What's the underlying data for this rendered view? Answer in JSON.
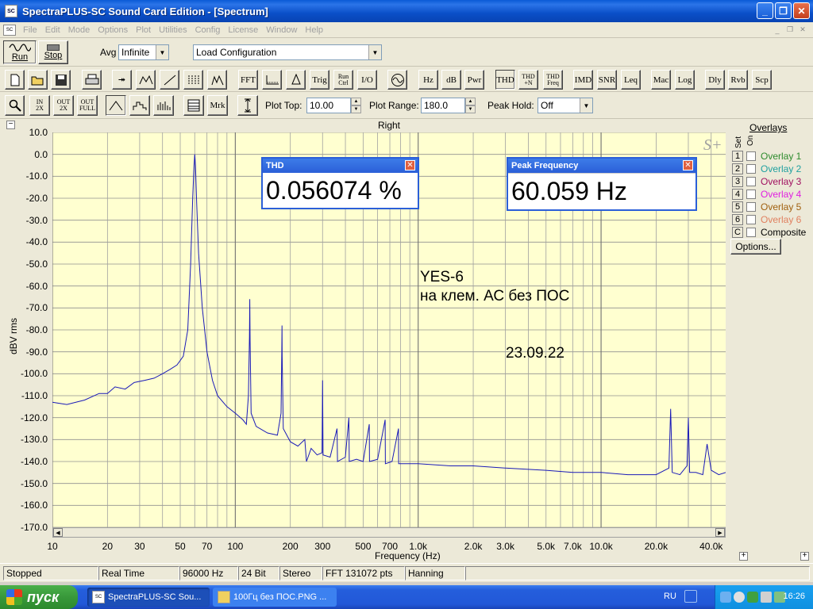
{
  "window": {
    "title": "SpectraPLUS-SC Sound Card Edition - [Spectrum]",
    "app_icon_text": "SC"
  },
  "menu": [
    "File",
    "Edit",
    "Mode",
    "Options",
    "Plot",
    "Utilities",
    "Config",
    "License",
    "Window",
    "Help"
  ],
  "toolbar1": {
    "run_label": "Run",
    "stop_label": "Stop",
    "avg_label": "Avg",
    "avg_value": "Infinite",
    "config_value": "Load Configuration"
  },
  "toolbar2": {
    "buttons": [
      "FFT",
      "Trig",
      "Run Ctrl",
      "I/O",
      "Hz",
      "dB",
      "Pwr",
      "THD",
      "THD +N",
      "THD Freq",
      "IMD",
      "SNR",
      "Leq",
      "Mac",
      "Log",
      "Dly",
      "Rvb",
      "Scp"
    ]
  },
  "toolbar3": {
    "mrk_label": "Mrk",
    "plot_top_label": "Plot Top:",
    "plot_top_value": "10.00",
    "plot_range_label": "Plot Range:",
    "plot_range_value": "180.0",
    "peak_hold_label": "Peak Hold:",
    "peak_hold_value": "Off"
  },
  "plot": {
    "title": "Right",
    "collapse_glyph": "−",
    "expand_glyph": "+",
    "logo_text": "S+"
  },
  "chart_data": {
    "type": "line",
    "title": "Right",
    "xlabel": "Frequency (Hz)",
    "ylabel": "dBV rms",
    "x_scale": "log",
    "xlim": [
      10,
      48000
    ],
    "ylim": [
      -170,
      10
    ],
    "grid": true,
    "background": "#ffffd0",
    "line_color": "#1a1ab8",
    "y_ticks": [
      "10.0",
      "0.0",
      "-10.0",
      "-20.0",
      "-30.0",
      "-40.0",
      "-50.0",
      "-60.0",
      "-70.0",
      "-80.0",
      "-90.0",
      "-100.0",
      "-110.0",
      "-120.0",
      "-130.0",
      "-140.0",
      "-150.0",
      "-160.0",
      "-170.0"
    ],
    "x_ticks": [
      {
        "v": 10,
        "label": "10"
      },
      {
        "v": 20,
        "label": "20"
      },
      {
        "v": 30,
        "label": "30"
      },
      {
        "v": 50,
        "label": "50"
      },
      {
        "v": 70,
        "label": "70"
      },
      {
        "v": 100,
        "label": "100"
      },
      {
        "v": 200,
        "label": "200"
      },
      {
        "v": 300,
        "label": "300"
      },
      {
        "v": 500,
        "label": "500"
      },
      {
        "v": 700,
        "label": "700"
      },
      {
        "v": 1000,
        "label": "1.0k"
      },
      {
        "v": 2000,
        "label": "2.0k"
      },
      {
        "v": 3000,
        "label": "3.0k"
      },
      {
        "v": 5000,
        "label": "5.0k"
      },
      {
        "v": 7000,
        "label": "7.0k"
      },
      {
        "v": 10000,
        "label": "10.0k"
      },
      {
        "v": 20000,
        "label": "20.0k"
      },
      {
        "v": 40000,
        "label": "40.0k"
      }
    ],
    "series": [
      {
        "values": [
          [
            10,
            -113
          ],
          [
            12,
            -114
          ],
          [
            15,
            -112
          ],
          [
            18,
            -109
          ],
          [
            20,
            -109
          ],
          [
            22,
            -106
          ],
          [
            25,
            -107
          ],
          [
            28,
            -104
          ],
          [
            32,
            -103
          ],
          [
            36,
            -102
          ],
          [
            40,
            -100
          ],
          [
            44,
            -98
          ],
          [
            48,
            -96
          ],
          [
            52,
            -92
          ],
          [
            55,
            -80
          ],
          [
            57,
            -50
          ],
          [
            58.5,
            -20
          ],
          [
            59.5,
            -5
          ],
          [
            60,
            0
          ],
          [
            60.6,
            -5
          ],
          [
            61.5,
            -22
          ],
          [
            63,
            -45
          ],
          [
            66,
            -70
          ],
          [
            70,
            -90
          ],
          [
            75,
            -103
          ],
          [
            80,
            -110
          ],
          [
            90,
            -115
          ],
          [
            100,
            -118
          ],
          [
            110,
            -121
          ],
          [
            115,
            -123
          ],
          [
            118,
            -110
          ],
          [
            119.5,
            -83
          ],
          [
            120,
            -66
          ],
          [
            120.5,
            -85
          ],
          [
            122,
            -118
          ],
          [
            130,
            -124
          ],
          [
            150,
            -127
          ],
          [
            170,
            -128
          ],
          [
            178,
            -118
          ],
          [
            179.5,
            -90
          ],
          [
            180,
            -78
          ],
          [
            180.5,
            -92
          ],
          [
            183,
            -125
          ],
          [
            200,
            -131
          ],
          [
            220,
            -133
          ],
          [
            240,
            -130
          ],
          [
            245,
            -140
          ],
          [
            260,
            -134
          ],
          [
            280,
            -137
          ],
          [
            298,
            -136
          ],
          [
            300,
            -103
          ],
          [
            302,
            -137
          ],
          [
            330,
            -138
          ],
          [
            360,
            -125
          ],
          [
            362,
            -140
          ],
          [
            400,
            -138
          ],
          [
            418,
            -120
          ],
          [
            420,
            -140
          ],
          [
            460,
            -139
          ],
          [
            500,
            -140
          ],
          [
            540,
            -123
          ],
          [
            542,
            -140
          ],
          [
            600,
            -139
          ],
          [
            660,
            -121
          ],
          [
            662,
            -141
          ],
          [
            720,
            -140
          ],
          [
            780,
            -125
          ],
          [
            782,
            -141
          ],
          [
            900,
            -141
          ],
          [
            1000,
            -141
          ],
          [
            1500,
            -142
          ],
          [
            2000,
            -142
          ],
          [
            3000,
            -143
          ],
          [
            5000,
            -144
          ],
          [
            7000,
            -145
          ],
          [
            10000,
            -145
          ],
          [
            14000,
            -146
          ],
          [
            20000,
            -146
          ],
          [
            23500,
            -143
          ],
          [
            24000,
            -116
          ],
          [
            24500,
            -145
          ],
          [
            27000,
            -146
          ],
          [
            29500,
            -142
          ],
          [
            30000,
            -120
          ],
          [
            30500,
            -145
          ],
          [
            33000,
            -145
          ],
          [
            36000,
            -146
          ],
          [
            38000,
            -132
          ],
          [
            40000,
            -144
          ],
          [
            44000,
            -146
          ],
          [
            48000,
            -145
          ]
        ]
      }
    ]
  },
  "thd_window": {
    "title": "THD",
    "value": "0.056074 %"
  },
  "peak_window": {
    "title": "Peak Frequency",
    "value": "60.059 Hz"
  },
  "annotation": {
    "line1": "YES-6",
    "line2": "на клем. АС без ПОС",
    "date": "23.09.22"
  },
  "overlays": {
    "title": "Overlays",
    "col_set": "Set",
    "col_on": "On",
    "items": [
      {
        "num": "1",
        "name": "Overlay 1",
        "color": "#2e8b2e"
      },
      {
        "num": "2",
        "name": "Overlay 2",
        "color": "#20a0a0"
      },
      {
        "num": "3",
        "name": "Overlay 3",
        "color": "#a01060"
      },
      {
        "num": "4",
        "name": "Overlay 4",
        "color": "#e020e0"
      },
      {
        "num": "5",
        "name": "Overlay 5",
        "color": "#a06010"
      },
      {
        "num": "6",
        "name": "Overlay 6",
        "color": "#e08060"
      },
      {
        "num": "C",
        "name": "Composite",
        "color": "#000000"
      }
    ],
    "options_label": "Options..."
  },
  "status": [
    "Stopped",
    "Real Time",
    "96000 Hz",
    "24 Bit",
    "Stereo",
    "FFT 131072 pts",
    "Hanning"
  ],
  "taskbar": {
    "start_label": "пуск",
    "task1": "SpectraPLUS-SC Sou...",
    "task2": "100Гц без ПОС.PNG ...",
    "lang": "RU",
    "clock": "16:26"
  }
}
